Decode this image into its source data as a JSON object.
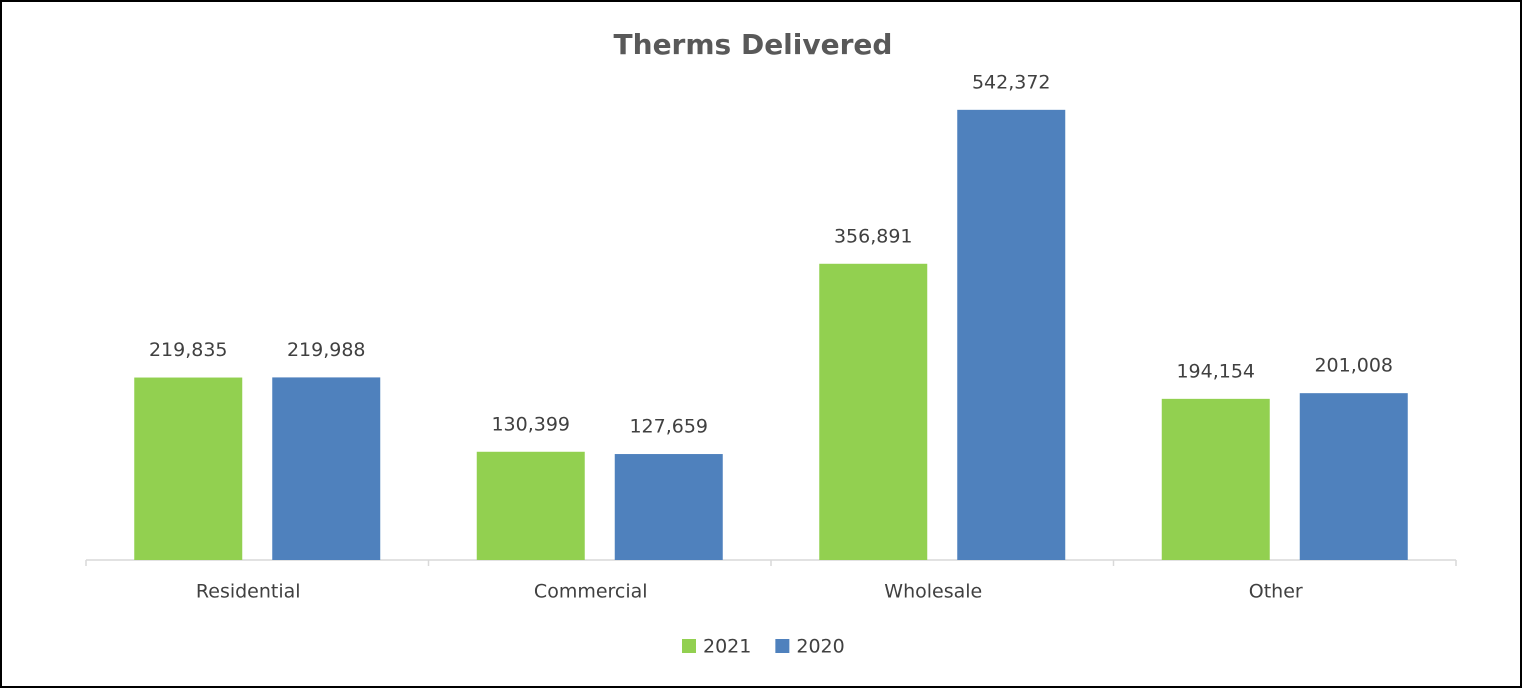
{
  "chart_data": {
    "type": "bar",
    "title": "Therms Delivered",
    "categories": [
      "Residential",
      "Commercial",
      "Wholesale",
      "Other"
    ],
    "series": [
      {
        "name": "2021",
        "color": "#92d050",
        "values": [
          219835,
          130399,
          356891,
          194154
        ],
        "value_labels": [
          "219,835",
          "130,399",
          "356,891",
          "194,154"
        ]
      },
      {
        "name": "2020",
        "color": "#4f81bd",
        "values": [
          219988,
          127659,
          542372,
          201008
        ],
        "value_labels": [
          "219,988",
          "127,659",
          "542,372",
          "201,008"
        ]
      }
    ],
    "ylim": [
      0,
      600000
    ],
    "grid": false,
    "legend": "bottom"
  }
}
